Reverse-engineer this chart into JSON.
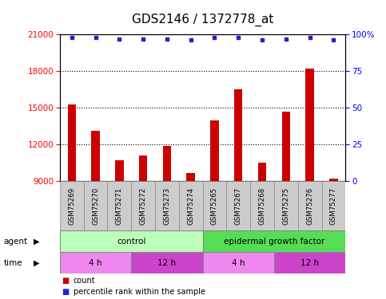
{
  "title": "GDS2146 / 1372778_at",
  "samples": [
    "GSM75269",
    "GSM75270",
    "GSM75271",
    "GSM75272",
    "GSM75273",
    "GSM75274",
    "GSM75265",
    "GSM75267",
    "GSM75268",
    "GSM75275",
    "GSM75276",
    "GSM75277"
  ],
  "counts": [
    15300,
    13100,
    10700,
    11100,
    11900,
    9700,
    14000,
    16500,
    10500,
    14700,
    18200,
    9200
  ],
  "percentile": [
    98,
    98,
    97,
    97,
    97,
    96,
    98,
    98,
    96,
    97,
    98,
    96
  ],
  "ylim_left": [
    9000,
    21000
  ],
  "ylim_right": [
    0,
    100
  ],
  "yticks_left": [
    9000,
    12000,
    15000,
    18000,
    21000
  ],
  "yticks_right": [
    0,
    25,
    50,
    75,
    100
  ],
  "bar_color": "#cc0000",
  "dot_color": "#2222cc",
  "agent_groups": [
    {
      "label": "control",
      "start": 0,
      "end": 6,
      "color": "#bbffbb"
    },
    {
      "label": "epidermal growth factor",
      "start": 6,
      "end": 12,
      "color": "#55dd55"
    }
  ],
  "time_groups": [
    {
      "label": "4 h",
      "start": 0,
      "end": 3,
      "color": "#ee88ee"
    },
    {
      "label": "12 h",
      "start": 3,
      "end": 6,
      "color": "#cc44cc"
    },
    {
      "label": "4 h",
      "start": 6,
      "end": 9,
      "color": "#ee88ee"
    },
    {
      "label": "12 h",
      "start": 9,
      "end": 12,
      "color": "#cc44cc"
    }
  ],
  "legend_items": [
    {
      "label": "count",
      "color": "#cc0000"
    },
    {
      "label": "percentile rank within the sample",
      "color": "#2222cc"
    }
  ],
  "grid_color": "#000000",
  "background_color": "#ffffff",
  "plot_bg_color": "#ffffff",
  "title_fontsize": 11,
  "tick_fontsize": 7.5,
  "label_fontsize": 8,
  "right_axis_top_label": "100%"
}
